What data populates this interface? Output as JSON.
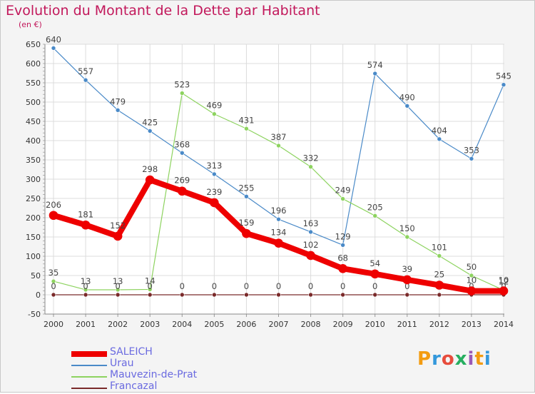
{
  "title": "Evolution du Montant de la Dette par Habitant",
  "unit": "(en €)",
  "logo": {
    "text": "Proxiti",
    "colors": [
      "#f39c12",
      "#3498db",
      "#e74c3c",
      "#27ae60",
      "#9b59b6",
      "#f39c12",
      "#3498db"
    ]
  },
  "chart_data": {
    "type": "line",
    "x": [
      "2000",
      "2001",
      "2002",
      "2003",
      "2004",
      "2005",
      "2006",
      "2007",
      "2008",
      "2009",
      "2010",
      "2011",
      "2012",
      "2013",
      "2014"
    ],
    "ylim": [
      -50,
      650
    ],
    "yticks": [
      -50,
      0,
      50,
      100,
      150,
      200,
      250,
      300,
      350,
      400,
      450,
      500,
      550,
      600,
      650
    ],
    "grid": true,
    "legend_position": "bottom-left",
    "series": [
      {
        "name": "Urau",
        "color": "#4a8ac8",
        "width": 1.2,
        "values": [
          640,
          557,
          479,
          425,
          368,
          313,
          255,
          196,
          163,
          129,
          574,
          490,
          404,
          353,
          545
        ],
        "labels": [
          "640",
          "557",
          "479",
          "425",
          "368",
          "313",
          "255",
          "196",
          "163",
          "129",
          "574",
          "490",
          "404",
          "353",
          "545"
        ]
      },
      {
        "name": "Mauvezin-de-Prat",
        "color": "#8dd35f",
        "width": 1.2,
        "values": [
          35,
          13,
          13,
          14,
          523,
          469,
          431,
          387,
          332,
          249,
          205,
          150,
          101,
          50,
          12
        ],
        "labels": [
          "35",
          "13",
          "13",
          "14",
          "523",
          "469",
          "431",
          "387",
          "332",
          "249",
          "205",
          "150",
          "101",
          "50",
          "12"
        ]
      },
      {
        "name": "Francazal",
        "color": "#7a2a2a",
        "width": 1.2,
        "values": [
          0,
          0,
          0,
          0,
          0,
          0,
          0,
          0,
          0,
          0,
          0,
          0,
          0,
          0,
          0
        ],
        "labels": [
          "0",
          "0",
          "0",
          "0",
          "0",
          "0",
          "0",
          "0",
          "0",
          "0",
          "0",
          "0",
          "0",
          "0",
          "0"
        ]
      },
      {
        "name": "SALEICH",
        "color": "#ee0000",
        "width": 8,
        "values": [
          206,
          181,
          152,
          298,
          269,
          239,
          159,
          134,
          102,
          68,
          54,
          39,
          25,
          10,
          10
        ],
        "labels": [
          "206",
          "181",
          "152",
          "298",
          "269",
          "239",
          "159",
          "134",
          "102",
          "68",
          "54",
          "39",
          "25",
          "10",
          "10"
        ]
      }
    ]
  }
}
